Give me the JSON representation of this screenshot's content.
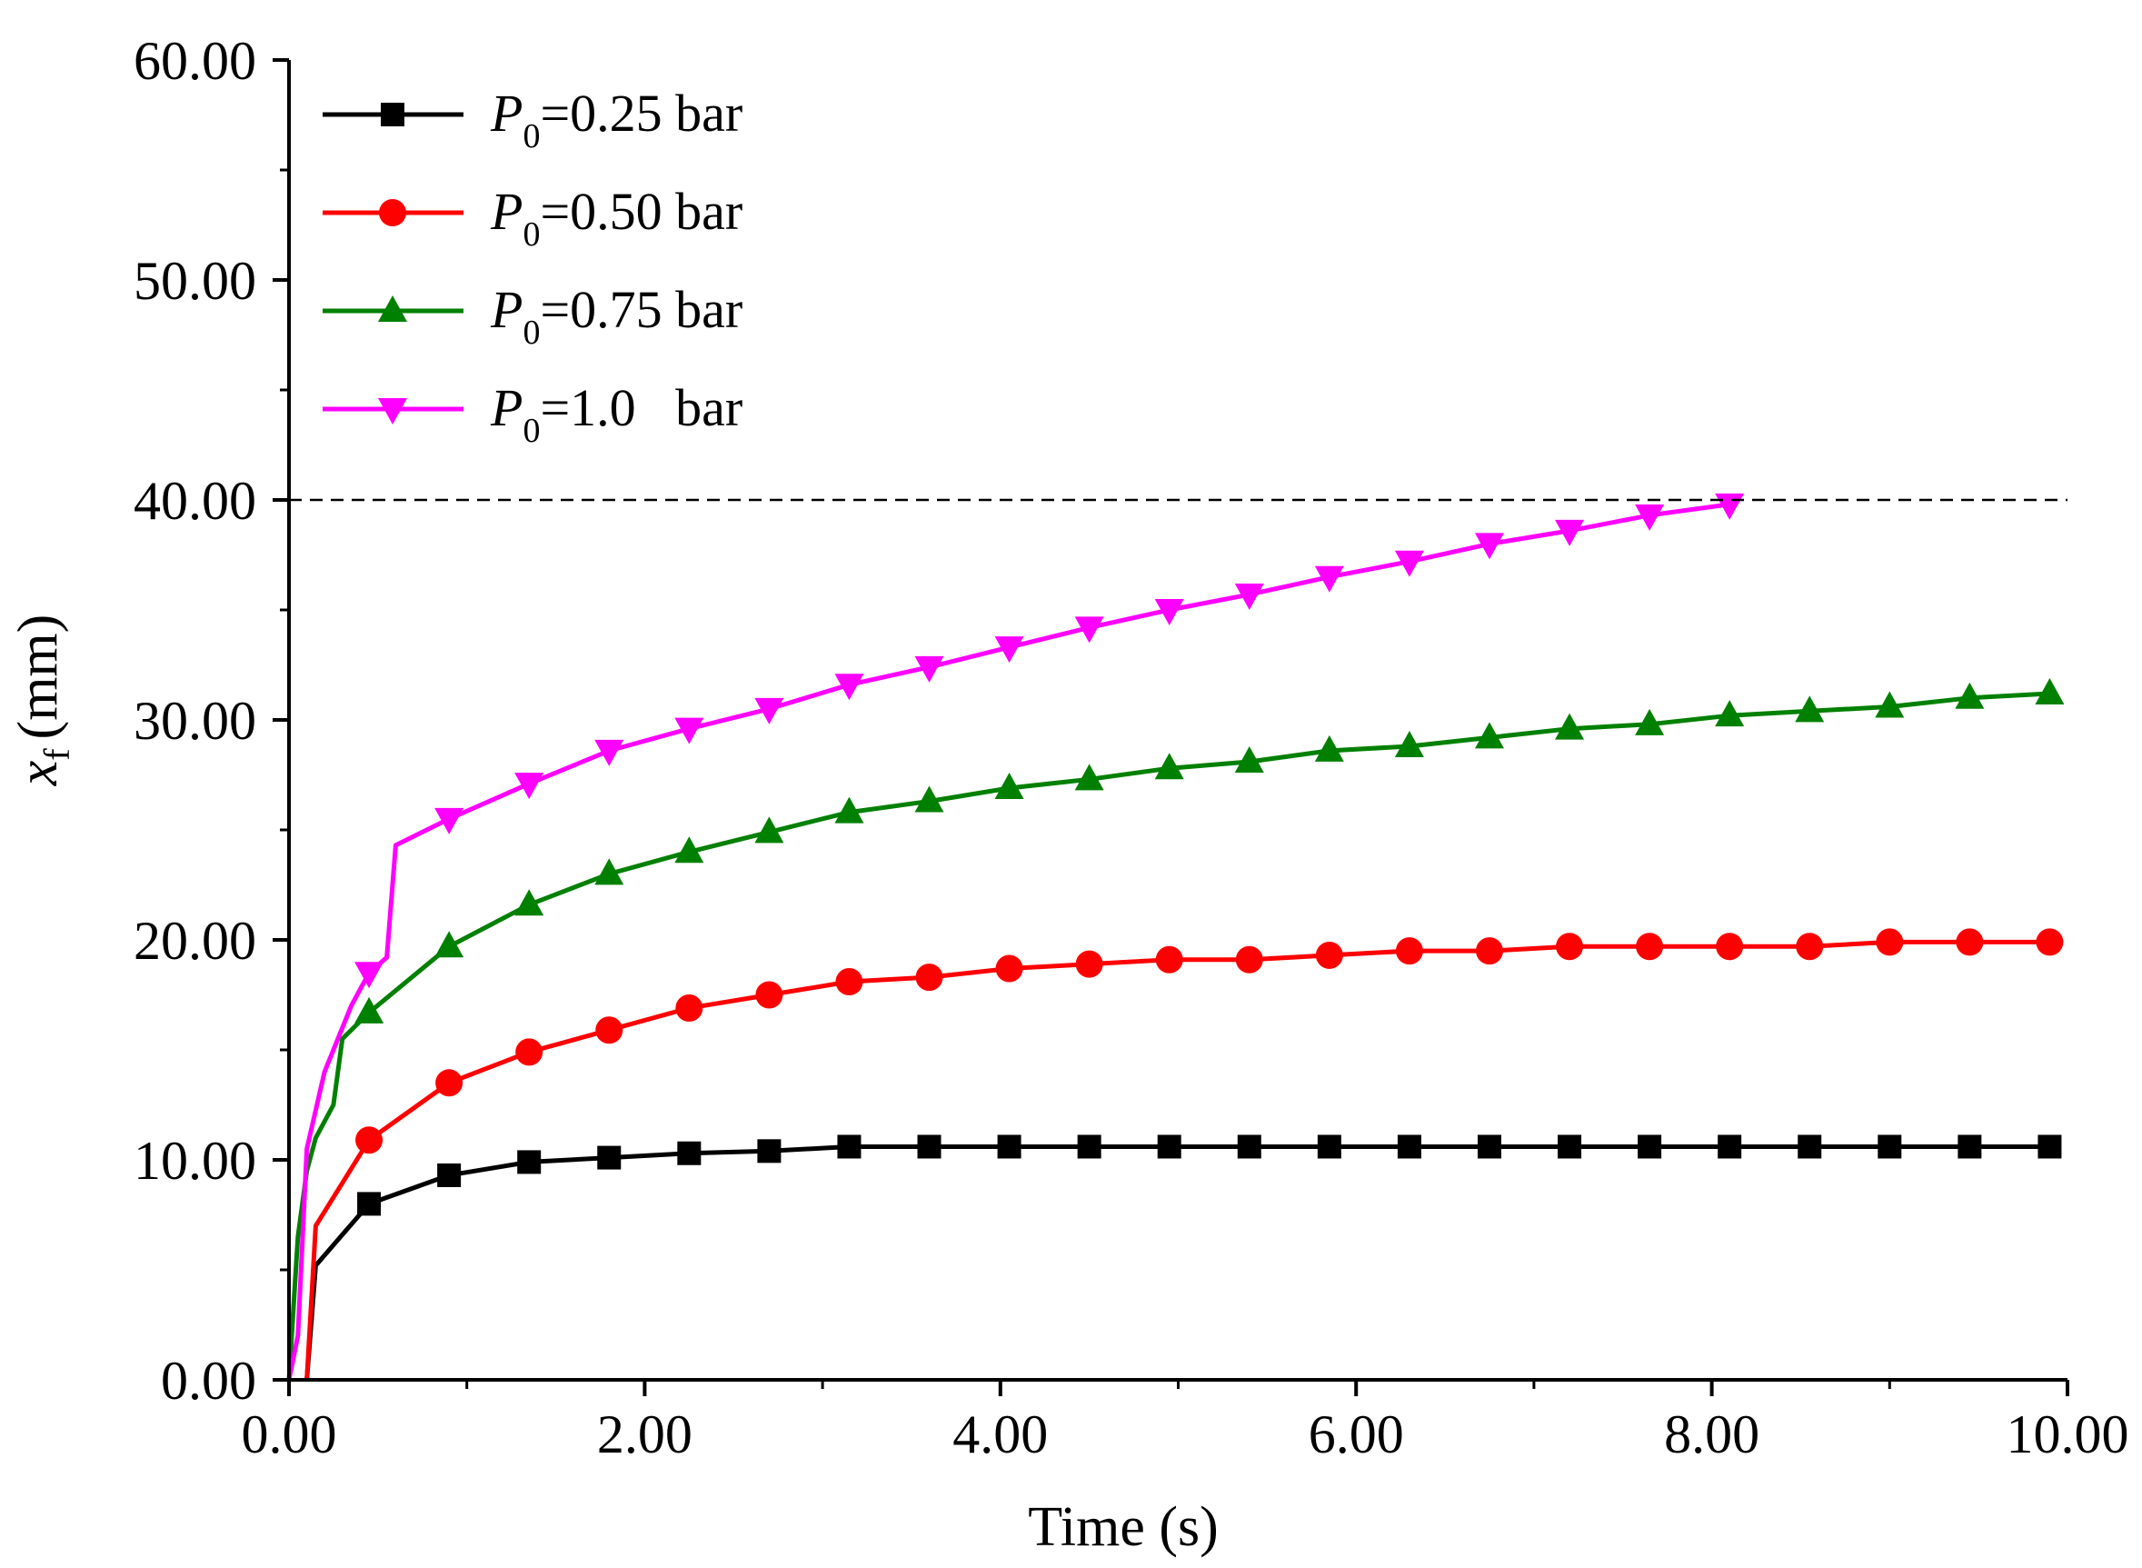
{
  "chart_data": {
    "type": "line",
    "title": "",
    "xlabel": "Time (s)",
    "ylabel_var": "x",
    "ylabel_sub": "f",
    "ylabel_unit": "(mm)",
    "xlim": [
      0,
      10
    ],
    "ylim": [
      0,
      60
    ],
    "grid": false,
    "legend_position": "top-left",
    "x_ticks": [
      {
        "value": 0,
        "label": "0.00"
      },
      {
        "value": 2,
        "label": "2.00"
      },
      {
        "value": 4,
        "label": "4.00"
      },
      {
        "value": 6,
        "label": "6.00"
      },
      {
        "value": 8,
        "label": "8.00"
      },
      {
        "value": 10,
        "label": "10.00"
      }
    ],
    "y_ticks": [
      {
        "value": 0,
        "label": "0.00"
      },
      {
        "value": 10,
        "label": "10.00"
      },
      {
        "value": 20,
        "label": "20.00"
      },
      {
        "value": 30,
        "label": "30.00"
      },
      {
        "value": 40,
        "label": "40.00"
      },
      {
        "value": 50,
        "label": "50.00"
      },
      {
        "value": 60,
        "label": "60.00"
      }
    ],
    "reference_line": {
      "y": 40,
      "style": "dashed",
      "color": "#000000"
    },
    "series": [
      {
        "name": "P0=0.25 bar",
        "legend_var": "P",
        "legend_sub": "0",
        "legend_rest": "=0.25 bar",
        "color": "#000000",
        "marker": "square",
        "x": [
          0.1,
          0.15,
          0.45,
          0.9,
          1.35,
          1.8,
          2.25,
          2.7,
          3.15,
          3.6,
          4.05,
          4.5,
          4.95,
          5.4,
          5.85,
          6.3,
          6.75,
          7.2,
          7.65,
          8.1,
          8.55,
          9.0,
          9.45,
          9.9
        ],
        "y": [
          0,
          5.2,
          8.0,
          9.3,
          9.9,
          10.1,
          10.3,
          10.4,
          10.6,
          10.6,
          10.6,
          10.6,
          10.6,
          10.6,
          10.6,
          10.6,
          10.6,
          10.6,
          10.6,
          10.6,
          10.6,
          10.6,
          10.6,
          10.6
        ],
        "marker_x": [
          0.45,
          0.9,
          1.35,
          1.8,
          2.25,
          2.7,
          3.15,
          3.6,
          4.05,
          4.5,
          4.95,
          5.4,
          5.85,
          6.3,
          6.75,
          7.2,
          7.65,
          8.1,
          8.55,
          9.0,
          9.45,
          9.9
        ],
        "marker_y": [
          8.0,
          9.3,
          9.9,
          10.1,
          10.3,
          10.4,
          10.6,
          10.6,
          10.6,
          10.6,
          10.6,
          10.6,
          10.6,
          10.6,
          10.6,
          10.6,
          10.6,
          10.6,
          10.6,
          10.6,
          10.6,
          10.6
        ]
      },
      {
        "name": "P0=0.50 bar",
        "legend_var": "P",
        "legend_sub": "0",
        "legend_rest": "=0.50 bar",
        "color": "#ff0000",
        "marker": "circle",
        "x": [
          0.1,
          0.15,
          0.45,
          0.9,
          1.35,
          1.8,
          2.25,
          2.7,
          3.15,
          3.6,
          4.05,
          4.5,
          4.95,
          5.4,
          5.85,
          6.3,
          6.75,
          7.2,
          7.65,
          8.1,
          8.55,
          9.0,
          9.45,
          9.9
        ],
        "y": [
          0,
          7.0,
          10.9,
          13.5,
          14.9,
          15.9,
          16.9,
          17.5,
          18.1,
          18.3,
          18.7,
          18.9,
          19.1,
          19.1,
          19.3,
          19.5,
          19.5,
          19.7,
          19.7,
          19.7,
          19.7,
          19.9,
          19.9,
          19.9
        ],
        "marker_x": [
          0.45,
          0.9,
          1.35,
          1.8,
          2.25,
          2.7,
          3.15,
          3.6,
          4.05,
          4.5,
          4.95,
          5.4,
          5.85,
          6.3,
          6.75,
          7.2,
          7.65,
          8.1,
          8.55,
          9.0,
          9.45,
          9.9
        ],
        "marker_y": [
          10.9,
          13.5,
          14.9,
          15.9,
          16.9,
          17.5,
          18.1,
          18.3,
          18.7,
          18.9,
          19.1,
          19.1,
          19.3,
          19.5,
          19.5,
          19.7,
          19.7,
          19.7,
          19.7,
          19.9,
          19.9,
          19.9
        ]
      },
      {
        "name": "P0=0.75 bar",
        "legend_var": "P",
        "legend_sub": "0",
        "legend_rest": "=0.75 bar",
        "color": "#008000",
        "marker": "triangle-up",
        "x": [
          0.0,
          0.05,
          0.1,
          0.15,
          0.25,
          0.3,
          0.45,
          0.9,
          1.35,
          1.8,
          2.25,
          2.7,
          3.15,
          3.6,
          4.05,
          4.5,
          4.95,
          5.4,
          5.85,
          6.3,
          6.75,
          7.2,
          7.65,
          8.1,
          8.55,
          9.0,
          9.45,
          9.9
        ],
        "y": [
          0,
          6.5,
          9.5,
          11.0,
          12.5,
          15.5,
          16.7,
          19.7,
          21.6,
          23.0,
          24.0,
          24.9,
          25.8,
          26.3,
          26.9,
          27.3,
          27.8,
          28.1,
          28.6,
          28.8,
          29.2,
          29.6,
          29.8,
          30.2,
          30.4,
          30.6,
          31.0,
          31.2
        ],
        "marker_x": [
          0.45,
          0.9,
          1.35,
          1.8,
          2.25,
          2.7,
          3.15,
          3.6,
          4.05,
          4.5,
          4.95,
          5.4,
          5.85,
          6.3,
          6.75,
          7.2,
          7.65,
          8.1,
          8.55,
          9.0,
          9.45,
          9.9
        ],
        "marker_y": [
          16.7,
          19.7,
          21.6,
          23.0,
          24.0,
          24.9,
          25.8,
          26.3,
          26.9,
          27.3,
          27.8,
          28.1,
          28.6,
          28.8,
          29.2,
          29.6,
          29.8,
          30.2,
          30.4,
          30.6,
          31.0,
          31.2
        ]
      },
      {
        "name": "P0=1.0 bar",
        "legend_var": "P",
        "legend_sub": "0",
        "legend_rest": "=1.0   bar",
        "color": "#ff00ff",
        "marker": "triangle-down",
        "x": [
          0.0,
          0.05,
          0.1,
          0.2,
          0.35,
          0.45,
          0.55,
          0.6,
          0.9,
          1.35,
          1.8,
          2.25,
          2.7,
          3.15,
          3.6,
          4.05,
          4.5,
          4.95,
          5.4,
          5.85,
          6.3,
          6.75,
          7.2,
          7.65,
          8.1
        ],
        "y": [
          0,
          2.0,
          10.5,
          14.0,
          17.0,
          18.5,
          19.2,
          24.3,
          25.5,
          27.1,
          28.6,
          29.6,
          30.5,
          31.6,
          32.4,
          33.3,
          34.2,
          35.0,
          35.7,
          36.5,
          37.2,
          38.0,
          38.6,
          39.3,
          39.8
        ],
        "marker_x": [
          0.45,
          0.9,
          1.35,
          1.8,
          2.25,
          2.7,
          3.15,
          3.6,
          4.05,
          4.5,
          4.95,
          5.4,
          5.85,
          6.3,
          6.75,
          7.2,
          7.65,
          8.1
        ],
        "marker_y": [
          18.5,
          25.5,
          27.1,
          28.6,
          29.6,
          30.5,
          31.6,
          32.4,
          33.3,
          34.2,
          35.0,
          35.7,
          36.5,
          37.2,
          38.0,
          38.6,
          39.3,
          39.8
        ]
      }
    ]
  }
}
